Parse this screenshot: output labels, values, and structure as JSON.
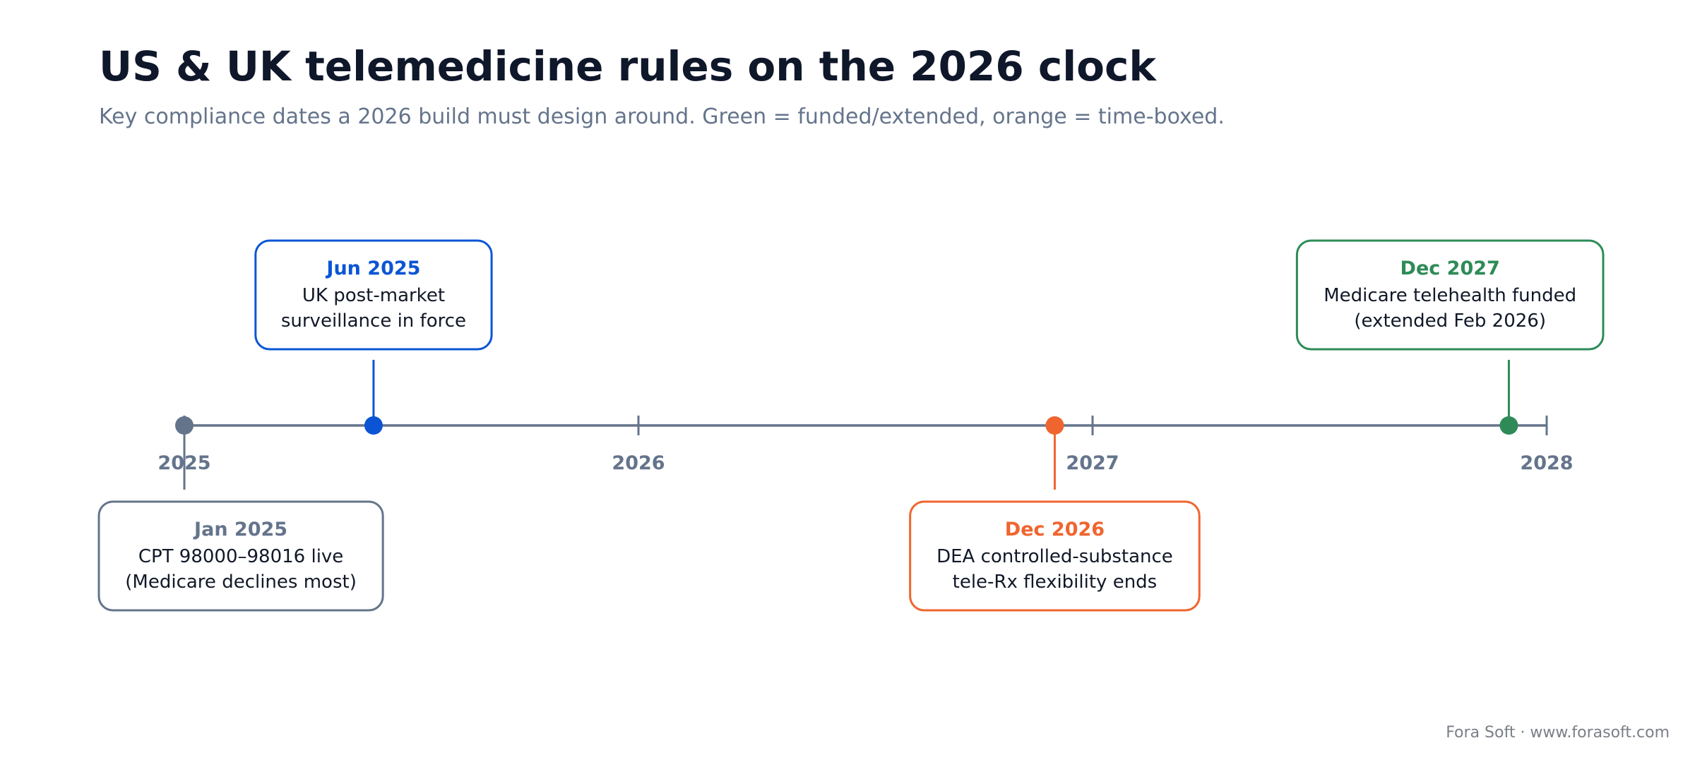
{
  "header": {
    "title": "US & UK telemedicine rules on the 2026 clock",
    "subtitle": "Key compliance dates a 2026 build must design around. Green = funded/extended, orange = time-boxed."
  },
  "colors": {
    "axis": "#64748b",
    "text_dark": "#111827",
    "gray": "#64748b",
    "blue": "#0b55d4",
    "orange": "#f0652f",
    "green": "#2e8b57"
  },
  "axis": {
    "years": [
      {
        "label": "2025",
        "value": 2025
      },
      {
        "label": "2026",
        "value": 2026
      },
      {
        "label": "2027",
        "value": 2027
      },
      {
        "label": "2028",
        "value": 2028
      }
    ]
  },
  "events": [
    {
      "date": 2025.0,
      "label": "Jan 2025",
      "lines": [
        "CPT 98000–98016 live",
        "(Medicare declines most)"
      ],
      "color": "gray",
      "side": "below"
    },
    {
      "date": 2025.4167,
      "label": "Jun 2025",
      "lines": [
        "UK post-market",
        "surveillance in force"
      ],
      "color": "blue",
      "side": "above"
    },
    {
      "date": 2026.9167,
      "label": "Dec 2026",
      "lines": [
        "DEA controlled-substance",
        "tele-Rx flexibility ends"
      ],
      "color": "orange",
      "side": "below"
    },
    {
      "date": 2027.9167,
      "label": "Dec 2027",
      "lines": [
        "Medicare telehealth funded",
        "(extended Feb 2026)"
      ],
      "color": "green",
      "side": "above"
    }
  ],
  "footer": "Fora Soft · www.forasoft.com"
}
